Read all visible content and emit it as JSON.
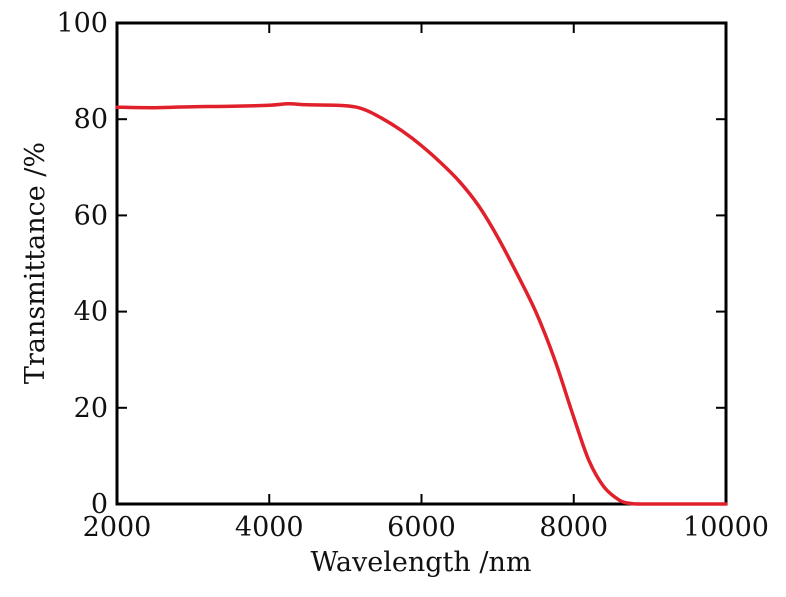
{
  "chart_data": {
    "type": "line",
    "title": "",
    "xlabel": "Wavelength /nm",
    "ylabel": "Transmittance /%",
    "xlim": [
      2000,
      10000
    ],
    "ylim": [
      0,
      100
    ],
    "xticks": [
      2000,
      4000,
      6000,
      8000,
      10000
    ],
    "yticks": [
      0,
      20,
      40,
      60,
      80,
      100
    ],
    "grid": false,
    "legend": "none",
    "series": [
      {
        "name": "Transmittance",
        "color": "#e0202a",
        "x": [
          2000,
          2500,
          3000,
          3500,
          4000,
          4250,
          4500,
          5000,
          5250,
          5500,
          5750,
          6000,
          6250,
          6500,
          6750,
          7000,
          7250,
          7500,
          7750,
          8000,
          8200,
          8400,
          8600,
          8750,
          8900,
          9000,
          9500,
          10000
        ],
        "y": [
          82.5,
          82.4,
          82.6,
          82.7,
          82.9,
          83.2,
          83.0,
          82.8,
          82.0,
          80.0,
          77.5,
          74.5,
          71.0,
          67.0,
          62.0,
          55.5,
          48.0,
          40.0,
          30.0,
          18.0,
          9.0,
          3.5,
          0.8,
          0.1,
          0.0,
          0.0,
          0.0,
          0.0
        ]
      }
    ]
  }
}
